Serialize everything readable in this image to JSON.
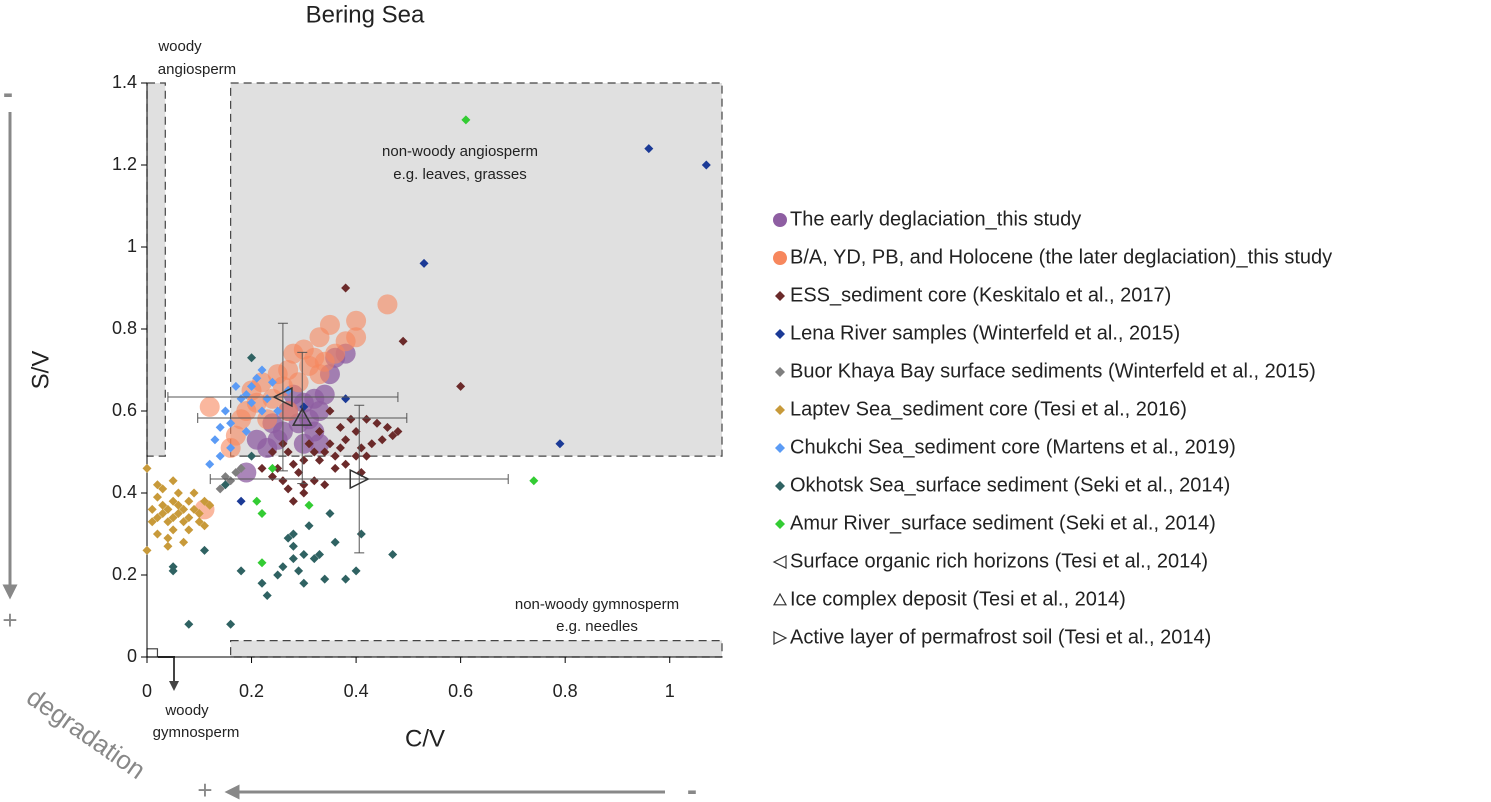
{
  "chart_data": {
    "type": "scatter",
    "title": "Bering Sea",
    "x_label": "C/V",
    "y_label": "S/V",
    "xlim": [
      0,
      1.1
    ],
    "ylim": [
      0,
      1.4
    ],
    "xticks": [
      0,
      0.2,
      0.4,
      0.6,
      0.8,
      1
    ],
    "yticks": [
      0,
      0.2,
      0.4,
      0.6,
      0.8,
      1,
      1.2,
      1.4
    ],
    "regions": [
      {
        "x": [
          0,
          0.035
        ],
        "y": [
          0.49,
          1.4
        ]
      },
      {
        "x": [
          0.16,
          1.1
        ],
        "y": [
          0.49,
          1.4
        ]
      },
      {
        "x": [
          0.16,
          1.1
        ],
        "y": [
          0,
          0.04
        ]
      },
      {
        "x": [
          0,
          0.02
        ],
        "y": [
          0,
          0.02
        ]
      }
    ],
    "annotations": [
      "woody",
      "angiosperm",
      "non-woody angiosperm",
      "e.g. leaves, grasses",
      "non-woody gymnosperm",
      "e.g. needles",
      "woody",
      "gymnosperm",
      "degradation",
      "-",
      "+",
      "+",
      "-"
    ],
    "series": [
      {
        "name": "The early deglaciation_this study",
        "color": "#8e5ea2",
        "marker": "circle",
        "opacity": 0.75,
        "x": [
          0.38,
          0.36,
          0.35,
          0.34,
          0.32,
          0.3,
          0.28,
          0.33,
          0.31,
          0.32,
          0.3,
          0.26,
          0.25,
          0.23,
          0.21,
          0.19,
          0.27,
          0.29,
          0.24,
          0.33
        ],
        "values": [
          0.74,
          0.73,
          0.69,
          0.64,
          0.63,
          0.62,
          0.64,
          0.6,
          0.58,
          0.55,
          0.52,
          0.55,
          0.53,
          0.51,
          0.53,
          0.45,
          0.6,
          0.57,
          0.57,
          0.52
        ]
      },
      {
        "name": "B/A, YD, PB, and Holocene (the later deglaciation)_this study",
        "color": "#f7875d",
        "marker": "circle",
        "opacity": 0.6,
        "x": [
          0.46,
          0.4,
          0.4,
          0.35,
          0.33,
          0.38,
          0.3,
          0.28,
          0.32,
          0.34,
          0.36,
          0.27,
          0.25,
          0.31,
          0.22,
          0.2,
          0.19,
          0.18,
          0.17,
          0.16,
          0.12,
          0.11,
          0.24,
          0.29,
          0.21,
          0.26,
          0.33,
          0.23,
          0.27
        ],
        "values": [
          0.86,
          0.82,
          0.78,
          0.81,
          0.78,
          0.77,
          0.75,
          0.74,
          0.73,
          0.72,
          0.74,
          0.7,
          0.69,
          0.71,
          0.67,
          0.65,
          0.6,
          0.58,
          0.54,
          0.51,
          0.61,
          0.36,
          0.63,
          0.67,
          0.62,
          0.66,
          0.69,
          0.58,
          0.6
        ]
      },
      {
        "name": "ESS_sediment core (Keskitalo et al., 2017)",
        "color": "#6b2a2a",
        "marker": "diamond",
        "opacity": 1,
        "x": [
          0.38,
          0.49,
          0.6,
          0.42,
          0.44,
          0.46,
          0.48,
          0.47,
          0.45,
          0.43,
          0.41,
          0.4,
          0.38,
          0.37,
          0.36,
          0.35,
          0.34,
          0.33,
          0.32,
          0.31,
          0.3,
          0.29,
          0.28,
          0.27,
          0.26,
          0.25,
          0.24,
          0.3,
          0.32,
          0.34,
          0.36,
          0.38,
          0.4,
          0.41,
          0.28,
          0.3,
          0.33,
          0.37,
          0.39,
          0.42,
          0.26,
          0.24,
          0.35,
          0.22,
          0.27
        ],
        "values": [
          0.9,
          0.77,
          0.66,
          0.58,
          0.57,
          0.56,
          0.55,
          0.54,
          0.53,
          0.52,
          0.51,
          0.55,
          0.53,
          0.51,
          0.49,
          0.52,
          0.5,
          0.48,
          0.5,
          0.52,
          0.48,
          0.45,
          0.47,
          0.5,
          0.43,
          0.46,
          0.44,
          0.42,
          0.43,
          0.42,
          0.46,
          0.47,
          0.49,
          0.45,
          0.38,
          0.4,
          0.55,
          0.56,
          0.58,
          0.49,
          0.52,
          0.5,
          0.6,
          0.46,
          0.41
        ]
      },
      {
        "name": "Lena River samples (Winterfeld et al., 2015)",
        "color": "#1b3a96",
        "marker": "diamond",
        "opacity": 1,
        "x": [
          0.96,
          1.07,
          0.53,
          0.79,
          0.38,
          0.18,
          0.3
        ],
        "values": [
          1.24,
          1.2,
          0.96,
          0.52,
          0.63,
          0.38,
          0.61
        ]
      },
      {
        "name": "Buor Khaya Bay surface sediments (Winterfeld et al., 2015)",
        "color": "#7f7f7f",
        "marker": "diamond",
        "opacity": 1,
        "x": [
          0.15,
          0.16,
          0.17,
          0.14,
          0.18
        ],
        "values": [
          0.44,
          0.43,
          0.45,
          0.41,
          0.46
        ]
      },
      {
        "name": "Laptev Sea_sediment core (Tesi et al., 2016)",
        "color": "#c89a3a",
        "marker": "diamond",
        "opacity": 1,
        "x": [
          0.0,
          0.01,
          0.01,
          0.02,
          0.02,
          0.02,
          0.03,
          0.03,
          0.03,
          0.04,
          0.04,
          0.04,
          0.05,
          0.05,
          0.05,
          0.06,
          0.06,
          0.06,
          0.07,
          0.07,
          0.07,
          0.08,
          0.08,
          0.08,
          0.09,
          0.09,
          0.1,
          0.1,
          0.11,
          0.12,
          0.0,
          0.02,
          0.05,
          0.11,
          0.04
        ],
        "values": [
          0.46,
          0.33,
          0.36,
          0.34,
          0.39,
          0.3,
          0.35,
          0.37,
          0.41,
          0.33,
          0.36,
          0.29,
          0.38,
          0.34,
          0.31,
          0.35,
          0.37,
          0.4,
          0.33,
          0.36,
          0.28,
          0.38,
          0.34,
          0.31,
          0.36,
          0.4,
          0.35,
          0.33,
          0.38,
          0.37,
          0.26,
          0.42,
          0.43,
          0.32,
          0.27
        ]
      },
      {
        "name": "Chukchi Sea_sediment core (Martens et al., 2019)",
        "color": "#5b9bf5",
        "marker": "diamond",
        "opacity": 1,
        "x": [
          0.12,
          0.13,
          0.14,
          0.15,
          0.16,
          0.18,
          0.17,
          0.19,
          0.2,
          0.21,
          0.22,
          0.23,
          0.25,
          0.27,
          0.19,
          0.16,
          0.14,
          0.2,
          0.22,
          0.24
        ],
        "values": [
          0.47,
          0.53,
          0.56,
          0.6,
          0.57,
          0.63,
          0.66,
          0.64,
          0.62,
          0.68,
          0.6,
          0.63,
          0.6,
          0.65,
          0.55,
          0.51,
          0.49,
          0.66,
          0.7,
          0.67
        ]
      },
      {
        "name": "Okhotsk Sea_surface sediment (Seki et al., 2014)",
        "color": "#2f6262",
        "marker": "diamond",
        "opacity": 1,
        "x": [
          0.08,
          0.16,
          0.05,
          0.05,
          0.11,
          0.18,
          0.2,
          0.22,
          0.23,
          0.25,
          0.27,
          0.28,
          0.28,
          0.29,
          0.3,
          0.3,
          0.32,
          0.33,
          0.34,
          0.35,
          0.38,
          0.4,
          0.41,
          0.47,
          0.36,
          0.28,
          0.26,
          0.31,
          0.15,
          0.2
        ],
        "values": [
          0.08,
          0.08,
          0.22,
          0.21,
          0.26,
          0.21,
          0.73,
          0.18,
          0.15,
          0.2,
          0.29,
          0.24,
          0.27,
          0.21,
          0.25,
          0.18,
          0.24,
          0.25,
          0.19,
          0.35,
          0.19,
          0.21,
          0.3,
          0.25,
          0.28,
          0.3,
          0.22,
          0.32,
          0.42,
          0.49
        ]
      },
      {
        "name": "Amur River_surface sediment (Seki et al., 2014)",
        "color": "#33cc33",
        "marker": "diamond",
        "opacity": 1,
        "x": [
          0.61,
          0.74,
          0.24,
          0.22,
          0.21,
          0.22,
          0.31
        ],
        "values": [
          1.31,
          0.43,
          0.46,
          0.35,
          0.38,
          0.23,
          0.37
        ]
      },
      {
        "name": "Surface organic rich horizons (Tesi et al., 2014)",
        "color": "#333333",
        "marker": "triangle-left",
        "opacity": 1,
        "x": [
          0.26
        ],
        "values": [
          0.634
        ],
        "xerr": [
          0.22
        ],
        "yerr": [
          0.18
        ]
      },
      {
        "name": "Ice complex deposit (Tesi et al., 2014)",
        "color": "#333333",
        "marker": "triangle-up",
        "opacity": 1,
        "x": [
          0.297
        ],
        "values": [
          0.583
        ],
        "xerr": [
          0.2
        ],
        "yerr": [
          0.16
        ]
      },
      {
        "name": "Active layer of permafrost soil (Tesi et al., 2014)",
        "color": "#333333",
        "marker": "triangle-right",
        "opacity": 1,
        "x": [
          0.406
        ],
        "values": [
          0.434
        ],
        "xerr": [
          0.285
        ],
        "yerr": [
          0.18
        ]
      }
    ]
  }
}
